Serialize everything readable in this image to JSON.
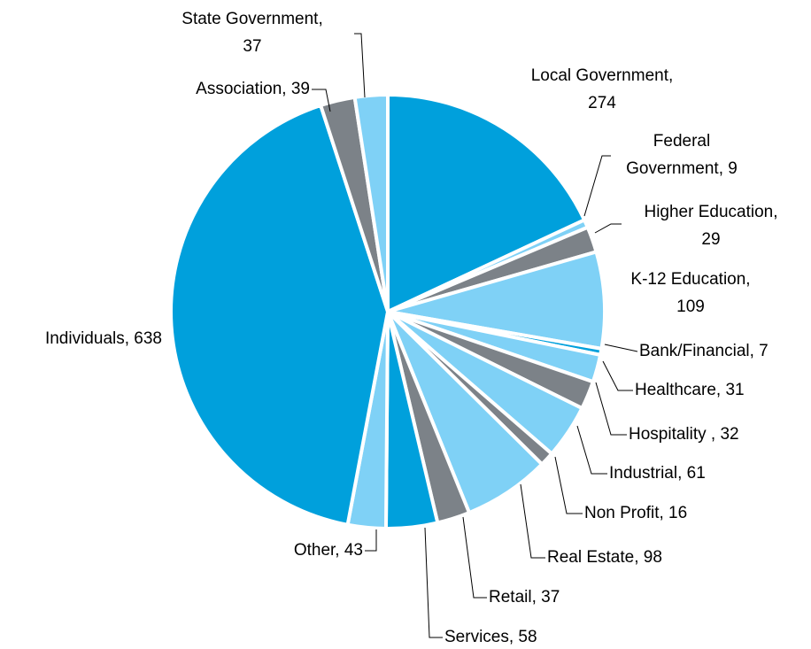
{
  "chart_data": {
    "type": "pie",
    "values": [
      274,
      9,
      29,
      109,
      7,
      31,
      32,
      61,
      16,
      98,
      37,
      58,
      43,
      638,
      39,
      37
    ],
    "value_labels": [
      "Local Government, 274",
      "Federal Government, 9",
      "Higher Education, 29",
      "K-12 Education, 109",
      "Bank/Financial, 7",
      "Healthcare, 31",
      "Hospitality , 32",
      "Industrial, 61",
      "Non Profit, 16",
      "Real Estate, 98",
      "Retail, 37",
      "Services, 58",
      "Other, 43",
      "Individuals, 638",
      "Association, 39",
      "State Government, 37"
    ],
    "colors": [
      "#00a0dc",
      "#7fd1f6",
      "#7c8288",
      "#7fd1f6",
      "#00a0dc",
      "#7fd1f6",
      "#7c8288",
      "#7fd1f6",
      "#7c8288",
      "#7fd1f6",
      "#7c8288",
      "#00a0dc",
      "#7fd1f6",
      "#00a0dc",
      "#7c8288",
      "#7fd1f6"
    ]
  }
}
